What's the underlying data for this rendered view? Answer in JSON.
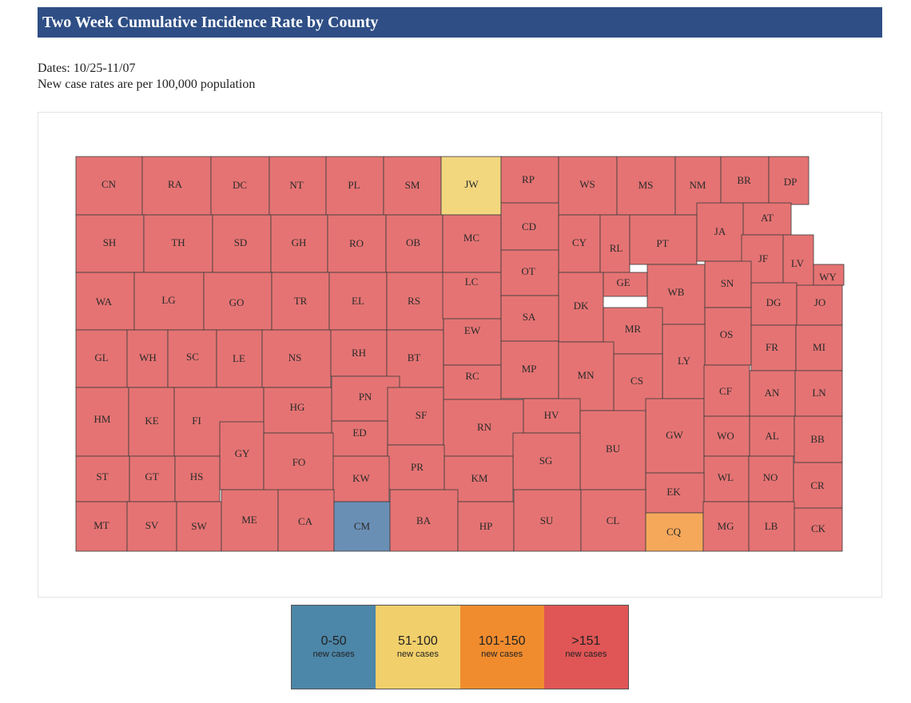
{
  "header": {
    "title": "Two Week Cumulative Incidence Rate by County"
  },
  "meta": {
    "dates": "Dates: 10/25-11/07",
    "note": "New case rates are per 100,000 population"
  },
  "colors": {
    "over151": "#e57373",
    "r51_100": "#f2d77f",
    "r101_150": "#f5a85a",
    "r0_50": "#6a8fb5"
  },
  "legend": [
    {
      "range": "0-50",
      "sub": "new cases",
      "color": "#4c86a8"
    },
    {
      "range": "51-100",
      "sub": "new cases",
      "color": "#f1cf6a"
    },
    {
      "range": "101-150",
      "sub": "new cases",
      "color": "#f08c2e"
    },
    {
      "range": ">151",
      "sub": "new cases",
      "color": "#e05555"
    }
  ],
  "counties": [
    {
      "code": "CN",
      "cat": "over151"
    },
    {
      "code": "RA",
      "cat": "over151"
    },
    {
      "code": "DC",
      "cat": "over151"
    },
    {
      "code": "NT",
      "cat": "over151"
    },
    {
      "code": "PL",
      "cat": "over151"
    },
    {
      "code": "SM",
      "cat": "over151"
    },
    {
      "code": "JW",
      "cat": "r51_100"
    },
    {
      "code": "RP",
      "cat": "over151"
    },
    {
      "code": "WS",
      "cat": "over151"
    },
    {
      "code": "MS",
      "cat": "over151"
    },
    {
      "code": "NM",
      "cat": "over151"
    },
    {
      "code": "BR",
      "cat": "over151"
    },
    {
      "code": "DP",
      "cat": "over151"
    },
    {
      "code": "SH",
      "cat": "over151"
    },
    {
      "code": "TH",
      "cat": "over151"
    },
    {
      "code": "SD",
      "cat": "over151"
    },
    {
      "code": "GH",
      "cat": "over151"
    },
    {
      "code": "RO",
      "cat": "over151"
    },
    {
      "code": "OB",
      "cat": "over151"
    },
    {
      "code": "MC",
      "cat": "over151"
    },
    {
      "code": "CD",
      "cat": "over151"
    },
    {
      "code": "CY",
      "cat": "over151"
    },
    {
      "code": "RL",
      "cat": "over151"
    },
    {
      "code": "PT",
      "cat": "over151"
    },
    {
      "code": "JA",
      "cat": "over151"
    },
    {
      "code": "AT",
      "cat": "over151"
    },
    {
      "code": "JF",
      "cat": "over151"
    },
    {
      "code": "LV",
      "cat": "over151"
    },
    {
      "code": "WY",
      "cat": "over151"
    },
    {
      "code": "WA",
      "cat": "over151"
    },
    {
      "code": "LG",
      "cat": "over151"
    },
    {
      "code": "GO",
      "cat": "over151"
    },
    {
      "code": "TR",
      "cat": "over151"
    },
    {
      "code": "EL",
      "cat": "over151"
    },
    {
      "code": "RS",
      "cat": "over151"
    },
    {
      "code": "LC",
      "cat": "over151"
    },
    {
      "code": "OT",
      "cat": "over151"
    },
    {
      "code": "DK",
      "cat": "over151"
    },
    {
      "code": "GE",
      "cat": "over151"
    },
    {
      "code": "WB",
      "cat": "over151"
    },
    {
      "code": "SN",
      "cat": "over151"
    },
    {
      "code": "DG",
      "cat": "over151"
    },
    {
      "code": "JO",
      "cat": "over151"
    },
    {
      "code": "GL",
      "cat": "over151"
    },
    {
      "code": "WH",
      "cat": "over151"
    },
    {
      "code": "SC",
      "cat": "over151"
    },
    {
      "code": "LE",
      "cat": "over151"
    },
    {
      "code": "NS",
      "cat": "over151"
    },
    {
      "code": "RH",
      "cat": "over151"
    },
    {
      "code": "BT",
      "cat": "over151"
    },
    {
      "code": "EW",
      "cat": "over151"
    },
    {
      "code": "SA",
      "cat": "over151"
    },
    {
      "code": "MR",
      "cat": "over151"
    },
    {
      "code": "OS",
      "cat": "over151"
    },
    {
      "code": "FR",
      "cat": "over151"
    },
    {
      "code": "MI",
      "cat": "over151"
    },
    {
      "code": "LY",
      "cat": "over151"
    },
    {
      "code": "RC",
      "cat": "over151"
    },
    {
      "code": "MP",
      "cat": "over151"
    },
    {
      "code": "MN",
      "cat": "over151"
    },
    {
      "code": "CS",
      "cat": "over151"
    },
    {
      "code": "HM",
      "cat": "over151"
    },
    {
      "code": "KE",
      "cat": "over151"
    },
    {
      "code": "FI",
      "cat": "over151"
    },
    {
      "code": "HG",
      "cat": "over151"
    },
    {
      "code": "PN",
      "cat": "over151"
    },
    {
      "code": "SF",
      "cat": "over151"
    },
    {
      "code": "RN",
      "cat": "over151"
    },
    {
      "code": "HV",
      "cat": "over151"
    },
    {
      "code": "ED",
      "cat": "over151"
    },
    {
      "code": "GW",
      "cat": "over151"
    },
    {
      "code": "CF",
      "cat": "over151"
    },
    {
      "code": "AN",
      "cat": "over151"
    },
    {
      "code": "LN",
      "cat": "over151"
    },
    {
      "code": "BU",
      "cat": "over151"
    },
    {
      "code": "GY",
      "cat": "over151"
    },
    {
      "code": "WO",
      "cat": "over151"
    },
    {
      "code": "AL",
      "cat": "over151"
    },
    {
      "code": "BB",
      "cat": "over151"
    },
    {
      "code": "FO",
      "cat": "over151"
    },
    {
      "code": "SG",
      "cat": "over151"
    },
    {
      "code": "PR",
      "cat": "over151"
    },
    {
      "code": "ST",
      "cat": "over151"
    },
    {
      "code": "GT",
      "cat": "over151"
    },
    {
      "code": "HS",
      "cat": "over151"
    },
    {
      "code": "KW",
      "cat": "over151"
    },
    {
      "code": "KM",
      "cat": "over151"
    },
    {
      "code": "WL",
      "cat": "over151"
    },
    {
      "code": "NO",
      "cat": "over151"
    },
    {
      "code": "CR",
      "cat": "over151"
    },
    {
      "code": "EK",
      "cat": "over151"
    },
    {
      "code": "MT",
      "cat": "over151"
    },
    {
      "code": "SV",
      "cat": "over151"
    },
    {
      "code": "SW",
      "cat": "over151"
    },
    {
      "code": "ME",
      "cat": "over151"
    },
    {
      "code": "CA",
      "cat": "over151"
    },
    {
      "code": "CM",
      "cat": "r0_50"
    },
    {
      "code": "BA",
      "cat": "over151"
    },
    {
      "code": "HP",
      "cat": "over151"
    },
    {
      "code": "SU",
      "cat": "over151"
    },
    {
      "code": "CL",
      "cat": "over151"
    },
    {
      "code": "CQ",
      "cat": "r101_150"
    },
    {
      "code": "MG",
      "cat": "over151"
    },
    {
      "code": "LB",
      "cat": "over151"
    },
    {
      "code": "CK",
      "cat": "over151"
    }
  ]
}
